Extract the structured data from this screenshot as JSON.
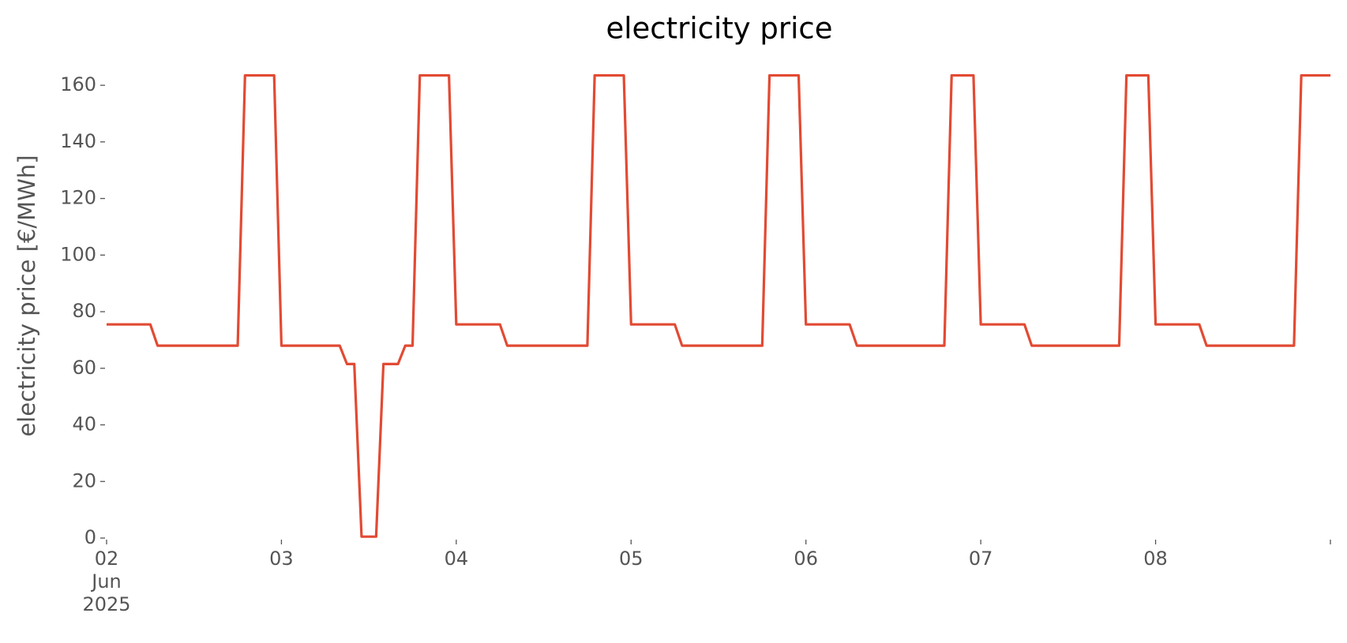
{
  "chart_data": {
    "type": "line",
    "title": "electricity price",
    "ylabel": "electricity price [€/MWh]",
    "x": [
      "2025-06-02 00:00",
      "2025-06-02 06:00",
      "2025-06-02 07:00",
      "2025-06-02 18:00",
      "2025-06-02 19:00",
      "2025-06-02 23:00",
      "2025-06-03 00:00",
      "2025-06-03 08:00",
      "2025-06-03 09:00",
      "2025-06-03 10:00",
      "2025-06-03 11:00",
      "2025-06-03 13:00",
      "2025-06-03 14:00",
      "2025-06-03 16:00",
      "2025-06-03 17:00",
      "2025-06-03 18:00",
      "2025-06-03 19:00",
      "2025-06-03 23:00",
      "2025-06-04 00:00",
      "2025-06-04 06:00",
      "2025-06-04 07:00",
      "2025-06-04 18:00",
      "2025-06-04 19:00",
      "2025-06-04 23:00",
      "2025-06-05 00:00",
      "2025-06-05 06:00",
      "2025-06-05 07:00",
      "2025-06-05 18:00",
      "2025-06-05 19:00",
      "2025-06-05 23:00",
      "2025-06-06 00:00",
      "2025-06-06 06:00",
      "2025-06-06 07:00",
      "2025-06-06 19:00",
      "2025-06-06 20:00",
      "2025-06-06 23:00",
      "2025-06-07 00:00",
      "2025-06-07 06:00",
      "2025-06-07 07:00",
      "2025-06-07 19:00",
      "2025-06-07 20:00",
      "2025-06-07 23:00",
      "2025-06-08 00:00",
      "2025-06-08 06:00",
      "2025-06-08 07:00",
      "2025-06-08 19:00",
      "2025-06-08 20:00",
      "2025-06-09 00:00"
    ],
    "series": [
      {
        "color": "#e24a33",
        "values": [
          75.5,
          75.5,
          68,
          68,
          163.5,
          163.5,
          68,
          68,
          61.5,
          61.5,
          0.5,
          0.5,
          61.5,
          61.5,
          68,
          68,
          163.5,
          163.5,
          75.5,
          75.5,
          68,
          68,
          163.5,
          163.5,
          75.5,
          75.5,
          68,
          68,
          163.5,
          163.5,
          75.5,
          75.5,
          68,
          68,
          163.5,
          163.5,
          75.5,
          75.5,
          68,
          68,
          163.5,
          163.5,
          75.5,
          75.5,
          68,
          68,
          163.5,
          163.5
        ]
      }
    ],
    "xlim": [
      "2025-06-02 00:00",
      "2025-06-09 00:00"
    ],
    "xticks": [
      {
        "value": "2025-06-02 00:00",
        "label": "02\nJun\n2025"
      },
      {
        "value": "2025-06-03 00:00",
        "label": "03"
      },
      {
        "value": "2025-06-04 00:00",
        "label": "04"
      },
      {
        "value": "2025-06-05 00:00",
        "label": "05"
      },
      {
        "value": "2025-06-06 00:00",
        "label": "06"
      },
      {
        "value": "2025-06-07 00:00",
        "label": "07"
      },
      {
        "value": "2025-06-08 00:00",
        "label": "08"
      },
      {
        "value": "2025-06-09 00:00",
        "label": null
      }
    ],
    "ylim": [
      0,
      167
    ],
    "yticks": [
      0,
      20,
      40,
      60,
      80,
      100,
      120,
      140,
      160
    ],
    "grid": false
  }
}
